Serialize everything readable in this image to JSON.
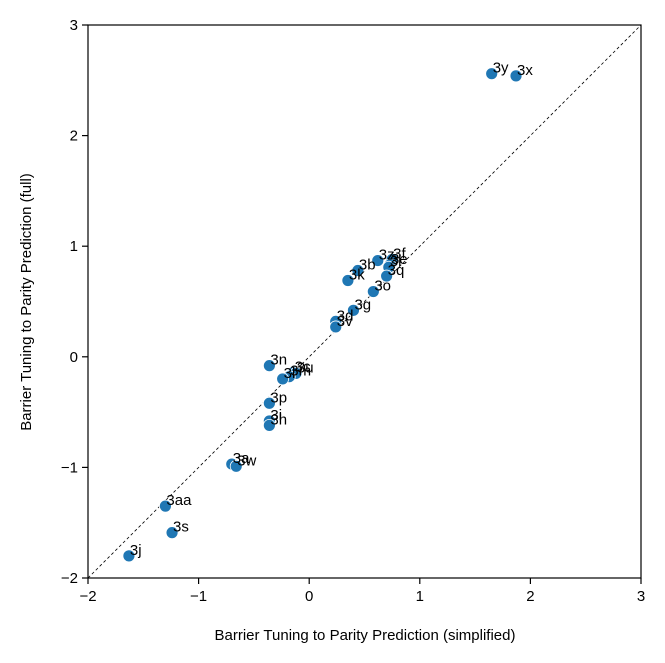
{
  "chart_data": {
    "type": "scatter",
    "xlabel": "Barrier Tuning to Parity Prediction (simplified)",
    "ylabel": "Barrier Tuning to Parity Prediction (full)",
    "xlim": [
      -2,
      3
    ],
    "ylim": [
      -2,
      3
    ],
    "xticks": [
      -2,
      -1,
      0,
      1,
      2,
      3
    ],
    "yticks": [
      -2,
      -1,
      0,
      1,
      2,
      3
    ],
    "xtick_labels": [
      "−2",
      "−1",
      "0",
      "1",
      "2",
      "3"
    ],
    "ytick_labels": [
      "−2",
      "−1",
      "0",
      "1",
      "2",
      "3"
    ],
    "grid": false,
    "reference_line": "y = x (dashed)",
    "marker_color": "#1f77b4",
    "points": [
      {
        "label": "3y",
        "x": 1.65,
        "y": 2.56
      },
      {
        "label": "3x",
        "x": 1.87,
        "y": 2.54
      },
      {
        "label": "3z",
        "x": 0.62,
        "y": 0.87
      },
      {
        "label": "3f",
        "x": 0.75,
        "y": 0.88
      },
      {
        "label": "3e",
        "x": 0.73,
        "y": 0.83
      },
      {
        "label": "3i",
        "x": 0.72,
        "y": 0.81
      },
      {
        "label": "3q",
        "x": 0.7,
        "y": 0.73
      },
      {
        "label": "3b",
        "x": 0.44,
        "y": 0.78
      },
      {
        "label": "3k",
        "x": 0.35,
        "y": 0.69
      },
      {
        "label": "3o",
        "x": 0.58,
        "y": 0.59
      },
      {
        "label": "3g",
        "x": 0.4,
        "y": 0.42
      },
      {
        "label": "3d",
        "x": 0.24,
        "y": 0.32
      },
      {
        "label": "3v",
        "x": 0.24,
        "y": 0.27
      },
      {
        "label": "3n",
        "x": -0.36,
        "y": -0.08
      },
      {
        "label": "3c",
        "x": -0.14,
        "y": -0.14
      },
      {
        "label": "3u",
        "x": -0.12,
        "y": -0.15
      },
      {
        "label": "3m",
        "x": -0.18,
        "y": -0.18
      },
      {
        "label": "3l",
        "x": -0.24,
        "y": -0.2
      },
      {
        "label": "3p",
        "x": -0.36,
        "y": -0.42
      },
      {
        "label": "3i",
        "x": -0.36,
        "y": -0.58
      },
      {
        "label": "3h",
        "x": -0.36,
        "y": -0.62
      },
      {
        "label": "3a",
        "x": -0.7,
        "y": -0.97
      },
      {
        "label": "3w",
        "x": -0.66,
        "y": -0.99
      },
      {
        "label": "3aa",
        "x": -1.3,
        "y": -1.35
      },
      {
        "label": "3s",
        "x": -1.24,
        "y": -1.59
      },
      {
        "label": "3j",
        "x": -1.63,
        "y": -1.8
      }
    ]
  }
}
